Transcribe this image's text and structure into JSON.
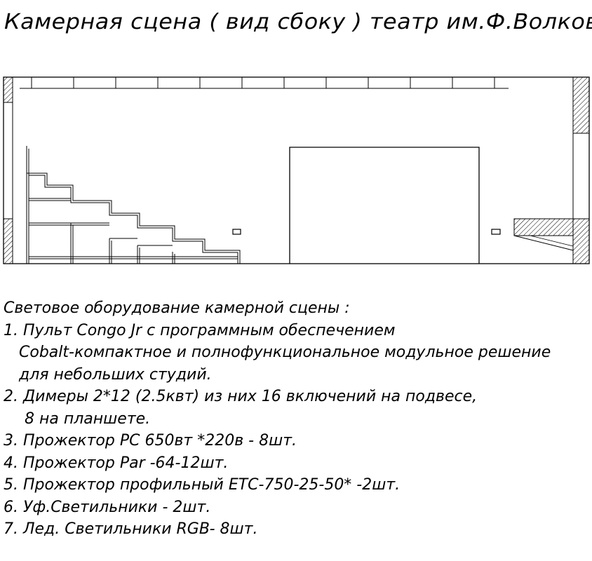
{
  "title": "Камерная сцена ( вид сбоку ) театр им.Ф.Волкова",
  "equipment": {
    "heading": "Световое оборудование камерной сцены :",
    "lines": [
      "1. Пульт Congo Jr с программным обеспечением",
      "Cobalt-компактное и полнофункциональное модульное решение",
      "для небольших студий.",
      "2. Димеры 2*12 (2.5квт) из них 16 включений на подвесе,",
      "8 на планшете.",
      "3. Прожектор PC 650вт *220в - 8шт.",
      "4. Прожектор Par -64-12шт.",
      "5. Прожектор профильный ETC-750-25-50* -2шт.",
      "6. Уф.Светильники - 2шт.",
      "7. Лед. Светильники RGB- 8шт."
    ]
  }
}
